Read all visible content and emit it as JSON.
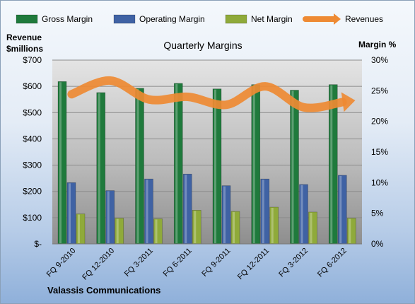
{
  "chart_data": {
    "type": "bar",
    "title": "Quarterly Margins",
    "subtitle": "",
    "footer": "Valassis Communications",
    "categories": [
      "FQ 9-2010",
      "FQ 12-2010",
      "FQ 3-2011",
      "FQ 6-2011",
      "FQ 9-2011",
      "FQ 12-2011",
      "FQ 3-2012",
      "FQ 6-2012"
    ],
    "series": [
      {
        "name": "Gross Margin",
        "color": "#1f7a3c",
        "values": [
          26.5,
          24.7,
          25.4,
          26.2,
          25.3,
          26.0,
          25.1,
          26.0
        ],
        "axis": "right"
      },
      {
        "name": "Operating Margin",
        "color": "#3f62a4",
        "values": [
          10.0,
          8.7,
          10.6,
          11.4,
          9.5,
          10.6,
          9.7,
          11.2
        ],
        "axis": "right"
      },
      {
        "name": "Net Margin",
        "color": "#8faa3a",
        "values": [
          4.9,
          4.2,
          4.1,
          5.5,
          5.3,
          6.0,
          5.2,
          4.2
        ],
        "axis": "right"
      },
      {
        "name": "Revenues",
        "color": "#ee8a33",
        "type": "line",
        "values": [
          570,
          622,
          550,
          560,
          530,
          600,
          520,
          540
        ],
        "axis": "left"
      }
    ],
    "left_axis": {
      "label_line1": "Revenue",
      "label_line2": "$millions",
      "ylim": [
        0,
        700
      ],
      "ticks": [
        0,
        100,
        200,
        300,
        400,
        500,
        600,
        700
      ],
      "tick_labels": [
        "$-",
        "$100",
        "$200",
        "$300",
        "$400",
        "$500",
        "$600",
        "$700"
      ]
    },
    "right_axis": {
      "label": "Margin %",
      "ylim": [
        0,
        30
      ],
      "ticks": [
        0,
        5,
        10,
        15,
        20,
        25,
        30
      ],
      "tick_labels": [
        "0%",
        "5%",
        "10%",
        "15%",
        "20%",
        "25%",
        "30%"
      ]
    },
    "legend_position": "top",
    "grid": true
  }
}
